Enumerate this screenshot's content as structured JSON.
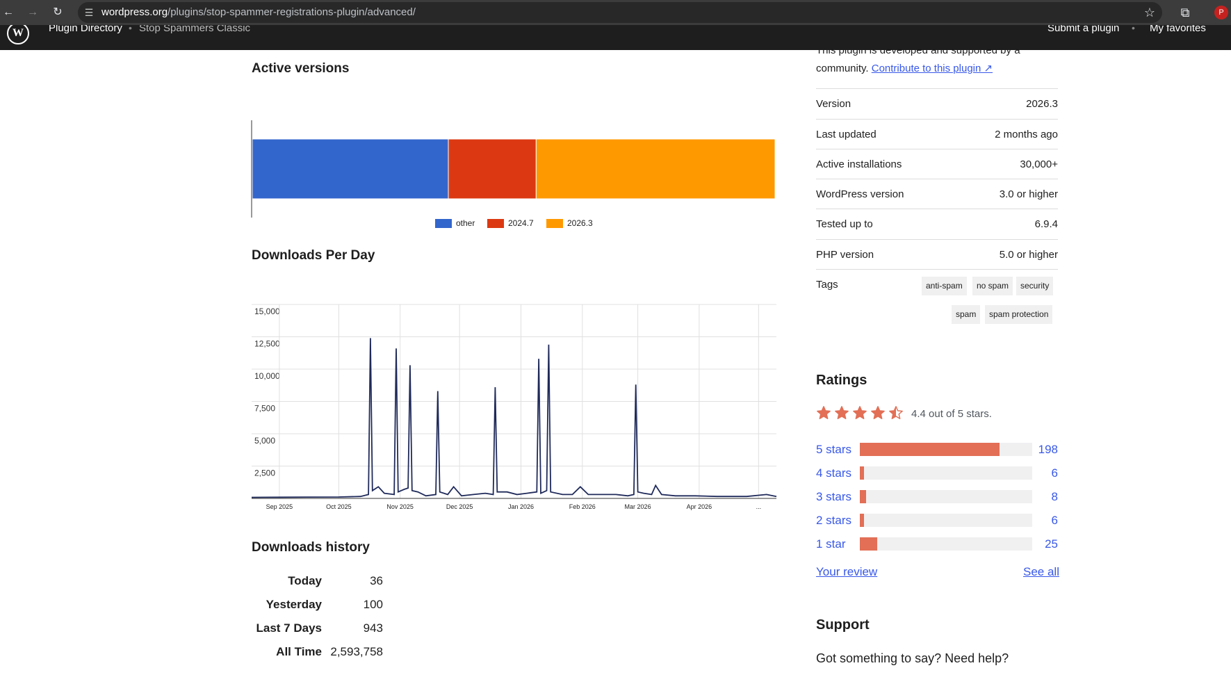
{
  "browser": {
    "url_host": "wordpress.org",
    "url_path": "/plugins/stop-spammer-registrations-plugin/advanced/",
    "profile_initial": "P"
  },
  "wp_nav": {
    "crumb_1": "Plugin Directory",
    "crumb_2": "Stop Spammers Classic",
    "submit": "Submit a plugin",
    "favorites": "My favorites"
  },
  "active_versions": {
    "title": "Active versions",
    "chart_data": {
      "type": "bar",
      "stacked": true,
      "orientation": "horizontal",
      "series": [
        {
          "name": "other",
          "value": 37.5,
          "color": "#3366cc"
        },
        {
          "name": "2024.7",
          "value": 16.8,
          "color": "#dc3912"
        },
        {
          "name": "2026.3",
          "value": 45.7,
          "color": "#ff9900"
        }
      ],
      "legend": "bottom"
    }
  },
  "downloads_per_day": {
    "title": "Downloads Per Day",
    "chart_data": {
      "type": "line",
      "ylim": [
        0,
        15000
      ],
      "y_ticks": [
        "15,000",
        "12,500",
        "10,000",
        "7,500",
        "5,000",
        "2,500"
      ],
      "x_ticks": [
        "Sep 2025",
        "Oct 2025",
        "Nov 2025",
        "Dec 2025",
        "Jan 2026",
        "Feb 2026",
        "Mar 2026",
        "Apr 2026",
        "..."
      ],
      "x_start": "2025-08-18",
      "x_end": "2026-05-10",
      "series": [
        {
          "color": "#1f2a5a",
          "points": [
            [
              "2025-08-18",
              80
            ],
            [
              "2025-09-01",
              90
            ],
            [
              "2025-09-15",
              100
            ],
            [
              "2025-10-01",
              110
            ],
            [
              "2025-10-12",
              150
            ],
            [
              "2025-10-16",
              300
            ],
            [
              "2025-10-17",
              12400
            ],
            [
              "2025-10-18",
              600
            ],
            [
              "2025-10-21",
              900
            ],
            [
              "2025-10-24",
              400
            ],
            [
              "2025-10-29",
              300
            ],
            [
              "2025-10-30",
              11600
            ],
            [
              "2025-10-31",
              500
            ],
            [
              "2025-11-03",
              700
            ],
            [
              "2025-11-05",
              800
            ],
            [
              "2025-11-06",
              10300
            ],
            [
              "2025-11-07",
              600
            ],
            [
              "2025-11-10",
              500
            ],
            [
              "2025-11-14",
              200
            ],
            [
              "2025-11-19",
              300
            ],
            [
              "2025-11-20",
              8300
            ],
            [
              "2025-11-21",
              500
            ],
            [
              "2025-11-25",
              300
            ],
            [
              "2025-11-28",
              900
            ],
            [
              "2025-12-02",
              200
            ],
            [
              "2025-12-08",
              300
            ],
            [
              "2025-12-14",
              400
            ],
            [
              "2025-12-18",
              300
            ],
            [
              "2025-12-19",
              8600
            ],
            [
              "2025-12-20",
              500
            ],
            [
              "2025-12-25",
              500
            ],
            [
              "2025-12-30",
              300
            ],
            [
              "2026-01-04",
              400
            ],
            [
              "2026-01-09",
              500
            ],
            [
              "2026-01-10",
              10800
            ],
            [
              "2026-01-11",
              400
            ],
            [
              "2026-01-14",
              600
            ],
            [
              "2026-01-15",
              11900
            ],
            [
              "2026-01-16",
              500
            ],
            [
              "2026-01-22",
              300
            ],
            [
              "2026-01-27",
              300
            ],
            [
              "2026-01-31",
              900
            ],
            [
              "2026-02-04",
              300
            ],
            [
              "2026-02-12",
              300
            ],
            [
              "2026-02-18",
              300
            ],
            [
              "2026-02-24",
              200
            ],
            [
              "2026-02-27",
              300
            ],
            [
              "2026-02-28",
              8800
            ],
            [
              "2026-03-01",
              500
            ],
            [
              "2026-03-04",
              400
            ],
            [
              "2026-03-08",
              300
            ],
            [
              "2026-03-10",
              1000
            ],
            [
              "2026-03-13",
              300
            ],
            [
              "2026-03-20",
              200
            ],
            [
              "2026-03-30",
              200
            ],
            [
              "2026-04-10",
              150
            ],
            [
              "2026-04-25",
              150
            ],
            [
              "2026-05-05",
              300
            ],
            [
              "2026-05-10",
              150
            ]
          ]
        }
      ]
    }
  },
  "downloads_history": {
    "title": "Downloads history",
    "rows": [
      {
        "label": "Today",
        "value": "36"
      },
      {
        "label": "Yesterday",
        "value": "100"
      },
      {
        "label": "Last 7 Days",
        "value": "943"
      },
      {
        "label": "All Time",
        "value": "2,593,758"
      }
    ]
  },
  "sidebar": {
    "intro_text": "This plugin is developed and supported by a community.",
    "contribute_link": "Contribute to this plugin ↗",
    "meta": [
      {
        "key": "Version",
        "value": "2026.3"
      },
      {
        "key": "Last updated",
        "value": "2 months ago"
      },
      {
        "key": "Active installations",
        "value": "30,000+"
      },
      {
        "key": "WordPress version",
        "value": "3.0 or higher"
      },
      {
        "key": "Tested up to",
        "value": "6.9.4"
      },
      {
        "key": "PHP version",
        "value": "5.0 or higher"
      }
    ],
    "tags_label": "Tags",
    "tags": [
      "anti-spam",
      "no spam",
      "security",
      "spam",
      "spam protection"
    ]
  },
  "ratings": {
    "title": "Ratings",
    "score": 4.4,
    "summary": "4.4 out of 5 stars.",
    "star_color": "#e26f56",
    "bars": [
      {
        "label": "5 stars",
        "count": "198",
        "fraction": 0.81
      },
      {
        "label": "4 stars",
        "count": "6",
        "fraction": 0.025
      },
      {
        "label": "3 stars",
        "count": "8",
        "fraction": 0.035
      },
      {
        "label": "2 stars",
        "count": "6",
        "fraction": 0.025
      },
      {
        "label": "1 star",
        "count": "25",
        "fraction": 0.1
      }
    ],
    "your_review": "Your review",
    "see_all": "See all"
  },
  "support": {
    "title": "Support",
    "question": "Got something to say? Need help?"
  }
}
